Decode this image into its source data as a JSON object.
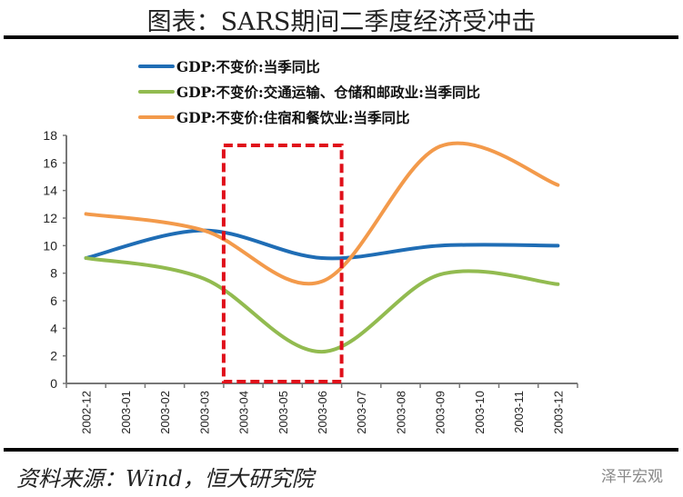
{
  "title": "图表：SARS期间二季度经济受冲击",
  "source": "资料来源：Wind，恒大研究院",
  "brand": "泽平宏观",
  "chart_data": {
    "type": "line",
    "smooth": true,
    "categories": [
      "2002-12",
      "2003-01",
      "2003-02",
      "2003-03",
      "2003-04",
      "2003-05",
      "2003-06",
      "2003-07",
      "2003-08",
      "2003-09",
      "2003-10",
      "2003-11",
      "2003-12"
    ],
    "ylim": [
      0,
      18
    ],
    "yticks": [
      0,
      2,
      4,
      6,
      8,
      10,
      12,
      14,
      16,
      18
    ],
    "grid": false,
    "legend_position": "top",
    "series": [
      {
        "name": "GDP:不变价:当季同比",
        "color": "#1F6DB5",
        "values": [
          9.1,
          null,
          null,
          11.1,
          null,
          null,
          9.1,
          null,
          null,
          10.0,
          null,
          null,
          10.0
        ]
      },
      {
        "name": "GDP:不变价:交通运输、仓储和邮政业:当季同比",
        "color": "#92BB50",
        "values": [
          9.1,
          null,
          null,
          7.6,
          null,
          null,
          2.3,
          null,
          null,
          7.9,
          null,
          null,
          7.2
        ]
      },
      {
        "name": "GDP:不变价:住宿和餐饮业:当季同比",
        "color": "#F39A4B",
        "values": [
          12.3,
          null,
          null,
          11.1,
          null,
          null,
          7.4,
          null,
          null,
          17.2,
          null,
          null,
          14.4
        ]
      }
    ],
    "highlight": {
      "from": "2003-04",
      "to": "2003-06",
      "color": "#E0101A",
      "style": "dashed"
    }
  }
}
